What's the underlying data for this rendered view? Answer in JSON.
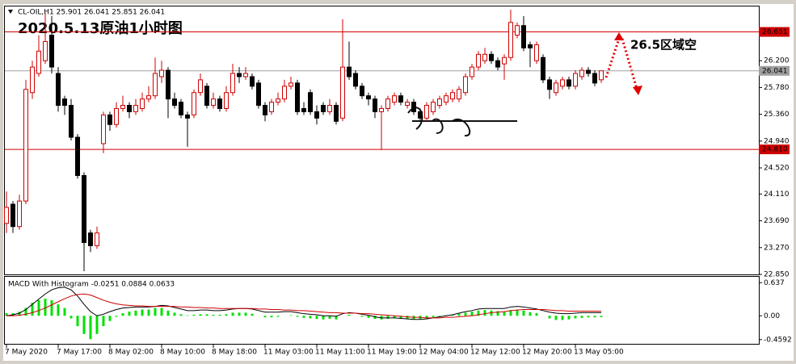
{
  "chart_data": [
    {
      "type": "candlestick",
      "header": "CL-OIL,H1  25.901 26.041 25.851 26.041",
      "title": "2020.5.13原油1小时图",
      "annotation": "26.5区域空",
      "ylim": [
        22.85,
        27.05
      ],
      "yticks": [
        {
          "value": 26.2,
          "label": "26.200"
        },
        {
          "value": 25.78,
          "label": "25.780"
        },
        {
          "value": 25.36,
          "label": "25.360"
        },
        {
          "value": 24.94,
          "label": "24.940"
        },
        {
          "value": 24.52,
          "label": "24.520"
        },
        {
          "value": 24.11,
          "label": "24.110"
        },
        {
          "value": 23.69,
          "label": "23.690"
        },
        {
          "value": 23.27,
          "label": "23.270"
        },
        {
          "value": 22.85,
          "label": "22.850"
        }
      ],
      "levels": [
        {
          "value": 26.651,
          "label": "26.651",
          "color": "#d00000"
        },
        {
          "value": 24.81,
          "label": "24.810",
          "color": "#d00000"
        },
        {
          "value": 26.041,
          "label": "26.041",
          "color": "#a0a0a0"
        }
      ],
      "x_labels": [
        "7 May 2020",
        "7 May 17:00",
        "8 May 02:00",
        "8 May 10:00",
        "8 May 18:00",
        "11 May 03:00",
        "11 May 11:00",
        "11 May 19:00",
        "12 May 04:00",
        "12 May 12:00",
        "12 May 20:00",
        "13 May 05:00"
      ],
      "up_color": "#d00000",
      "down_color": "#000000",
      "open": [
        23.65,
        23.95,
        23.6,
        24.0,
        25.7,
        26.0,
        26.2,
        26.6,
        26.0,
        25.6,
        25.5,
        25.0,
        24.4,
        23.5,
        23.3,
        24.9,
        25.35,
        25.2,
        25.45,
        25.5,
        25.4,
        25.45,
        25.6,
        25.65,
        25.95,
        26.05,
        25.6,
        25.55,
        25.35,
        25.35,
        25.7,
        25.8,
        25.5,
        25.6,
        25.45,
        25.7,
        26.0,
        25.95,
        25.95,
        25.85,
        25.5,
        25.4,
        25.55,
        25.6,
        25.8,
        25.85,
        25.45,
        25.7,
        25.4,
        25.5,
        25.4,
        25.5,
        25.3,
        26.1,
        26.0,
        25.8,
        25.65,
        25.6,
        25.4,
        25.45,
        25.55,
        25.65,
        25.5,
        25.55,
        25.4,
        25.3,
        25.4,
        25.5,
        25.55,
        25.6,
        25.6,
        25.7,
        25.95,
        26.1,
        26.2,
        26.3,
        26.2,
        26.15,
        26.25,
        26.6,
        26.75,
        26.45,
        26.2,
        26.25,
        25.9,
        25.7,
        25.8,
        25.9,
        25.8,
        25.95,
        26.05,
        26.0,
        25.901
      ],
      "high": [
        24.15,
        24.0,
        24.1,
        25.9,
        26.2,
        26.6,
        26.95,
        26.9,
        26.1,
        25.65,
        25.6,
        25.05,
        24.45,
        23.55,
        23.6,
        25.4,
        25.4,
        25.55,
        25.65,
        25.55,
        25.6,
        25.7,
        25.8,
        26.25,
        26.2,
        26.1,
        25.7,
        25.6,
        25.4,
        25.75,
        26.0,
        25.85,
        25.7,
        25.65,
        25.8,
        26.15,
        26.1,
        26.1,
        26.0,
        25.9,
        25.55,
        25.6,
        25.7,
        25.9,
        25.95,
        25.9,
        25.55,
        25.75,
        25.5,
        25.55,
        25.6,
        25.55,
        26.85,
        26.5,
        26.05,
        25.85,
        25.7,
        25.65,
        25.5,
        25.65,
        25.7,
        25.7,
        25.6,
        25.6,
        25.45,
        25.55,
        25.6,
        25.65,
        25.7,
        25.75,
        25.8,
        26.0,
        26.15,
        26.35,
        26.4,
        26.35,
        26.25,
        26.3,
        27.0,
        26.8,
        26.9,
        26.5,
        26.5,
        26.3,
        25.95,
        25.9,
        25.95,
        25.95,
        26.05,
        26.1,
        26.1,
        26.05,
        26.041
      ],
      "low": [
        23.5,
        23.5,
        23.55,
        23.95,
        25.6,
        25.95,
        26.15,
        26.0,
        25.4,
        25.35,
        24.95,
        24.35,
        22.9,
        23.2,
        23.25,
        24.75,
        25.1,
        25.15,
        25.4,
        25.3,
        25.35,
        25.4,
        25.55,
        25.6,
        25.85,
        25.3,
        25.45,
        25.3,
        24.85,
        25.3,
        25.65,
        25.45,
        25.45,
        25.4,
        25.4,
        25.65,
        25.85,
        25.9,
        25.75,
        25.45,
        25.25,
        25.35,
        25.5,
        25.55,
        25.75,
        25.35,
        25.35,
        25.35,
        25.2,
        25.35,
        25.35,
        25.2,
        25.25,
        25.9,
        25.75,
        25.6,
        25.5,
        25.3,
        24.8,
        25.4,
        25.5,
        25.5,
        25.45,
        25.35,
        25.25,
        25.25,
        25.35,
        25.45,
        25.5,
        25.55,
        25.55,
        25.65,
        25.9,
        26.05,
        26.15,
        26.15,
        26.05,
        25.9,
        26.2,
        26.55,
        26.35,
        26.1,
        26.15,
        25.85,
        25.6,
        25.65,
        25.75,
        25.75,
        25.75,
        25.9,
        25.95,
        25.8,
        25.851
      ],
      "close": [
        23.9,
        23.6,
        24.0,
        25.75,
        26.1,
        26.35,
        26.5,
        26.1,
        25.5,
        25.5,
        25.0,
        24.4,
        23.35,
        23.3,
        23.5,
        25.35,
        25.2,
        25.45,
        25.5,
        25.4,
        25.5,
        25.6,
        25.65,
        26.0,
        26.05,
        25.6,
        25.5,
        25.35,
        25.3,
        25.7,
        25.9,
        25.5,
        25.6,
        25.45,
        25.7,
        26.0,
        25.95,
        26.0,
        25.8,
        25.5,
        25.35,
        25.55,
        25.6,
        25.8,
        25.85,
        25.4,
        25.4,
        25.4,
        25.3,
        25.4,
        25.5,
        25.25,
        26.1,
        25.95,
        25.8,
        25.65,
        25.6,
        25.4,
        25.45,
        25.6,
        25.65,
        25.55,
        25.55,
        25.4,
        25.3,
        25.5,
        25.55,
        25.6,
        25.65,
        25.7,
        25.75,
        25.95,
        26.1,
        26.3,
        26.3,
        26.2,
        26.1,
        26.25,
        26.8,
        26.75,
        26.4,
        26.4,
        26.45,
        25.9,
        25.75,
        25.85,
        25.9,
        25.8,
        26.0,
        26.05,
        26.0,
        25.85,
        26.041
      ]
    },
    {
      "type": "macd",
      "title": "MACD With Histogram -0.0251 0.0884 0.0633",
      "ylim": [
        -0.54,
        0.75
      ],
      "yticks": [
        0.637,
        {
          "value": 0,
          "label": "0.00"
        },
        -0.4592
      ],
      "series": [
        {
          "name": "Histogram",
          "color": "#00e000",
          "values": [
            0.05,
            0.05,
            0.08,
            0.15,
            0.25,
            0.3,
            0.33,
            0.3,
            0.22,
            0.15,
            -0.05,
            -0.2,
            -0.35,
            -0.45,
            -0.35,
            -0.2,
            -0.1,
            -0.02,
            0.05,
            0.08,
            0.1,
            0.12,
            0.12,
            0.15,
            0.15,
            0.1,
            0.06,
            0.03,
            0.01,
            0.02,
            0.03,
            0.03,
            0.02,
            0.02,
            0.03,
            0.06,
            0.06,
            0.06,
            0.04,
            0.0,
            -0.03,
            -0.03,
            -0.02,
            0.0,
            0.01,
            -0.02,
            -0.04,
            -0.05,
            -0.06,
            -0.07,
            -0.06,
            -0.07,
            0.0,
            0.02,
            0.0,
            -0.02,
            -0.04,
            -0.06,
            -0.07,
            -0.06,
            -0.05,
            -0.05,
            -0.06,
            -0.07,
            -0.07,
            -0.05,
            -0.03,
            -0.01,
            0.01,
            0.02,
            0.04,
            0.06,
            0.08,
            0.1,
            0.11,
            0.1,
            0.09,
            0.08,
            0.11,
            0.12,
            0.1,
            0.07,
            0.05,
            0.0,
            -0.05,
            -0.08,
            -0.08,
            -0.07,
            -0.05,
            -0.04,
            -0.03,
            -0.03,
            -0.025
          ]
        },
        {
          "name": "MACD",
          "color": "#000000",
          "values": [
            0.0,
            0.02,
            0.05,
            0.12,
            0.22,
            0.32,
            0.42,
            0.5,
            0.54,
            0.55,
            0.5,
            0.38,
            0.22,
            0.08,
            0.0,
            0.03,
            0.08,
            0.12,
            0.15,
            0.16,
            0.17,
            0.17,
            0.17,
            0.18,
            0.2,
            0.19,
            0.16,
            0.13,
            0.1,
            0.1,
            0.11,
            0.11,
            0.1,
            0.1,
            0.11,
            0.13,
            0.14,
            0.14,
            0.13,
            0.1,
            0.07,
            0.07,
            0.07,
            0.08,
            0.08,
            0.06,
            0.04,
            0.03,
            0.02,
            0.0,
            0.0,
            -0.01,
            0.04,
            0.06,
            0.05,
            0.03,
            0.01,
            -0.02,
            -0.04,
            -0.04,
            -0.04,
            -0.05,
            -0.06,
            -0.07,
            -0.07,
            -0.06,
            -0.04,
            -0.02,
            0.0,
            0.02,
            0.05,
            0.08,
            0.1,
            0.13,
            0.14,
            0.14,
            0.14,
            0.14,
            0.17,
            0.18,
            0.17,
            0.15,
            0.13,
            0.1,
            0.07,
            0.05,
            0.04,
            0.04,
            0.05,
            0.06,
            0.06,
            0.06,
            0.06
          ]
        },
        {
          "name": "Signal",
          "color": "#d00000",
          "values": [
            0.0,
            0.0,
            0.01,
            0.03,
            0.06,
            0.1,
            0.15,
            0.21,
            0.27,
            0.33,
            0.38,
            0.41,
            0.42,
            0.4,
            0.35,
            0.3,
            0.26,
            0.23,
            0.21,
            0.2,
            0.19,
            0.19,
            0.18,
            0.18,
            0.18,
            0.18,
            0.18,
            0.17,
            0.17,
            0.16,
            0.16,
            0.15,
            0.15,
            0.14,
            0.14,
            0.14,
            0.14,
            0.14,
            0.14,
            0.13,
            0.13,
            0.12,
            0.12,
            0.11,
            0.11,
            0.1,
            0.1,
            0.09,
            0.08,
            0.07,
            0.06,
            0.06,
            0.05,
            0.05,
            0.05,
            0.04,
            0.04,
            0.03,
            0.02,
            0.01,
            0.0,
            -0.01,
            -0.02,
            -0.03,
            -0.03,
            -0.04,
            -0.04,
            -0.04,
            -0.03,
            -0.03,
            -0.02,
            -0.01,
            0.0,
            0.02,
            0.04,
            0.06,
            0.07,
            0.08,
            0.1,
            0.11,
            0.12,
            0.12,
            0.12,
            0.12,
            0.11,
            0.1,
            0.1,
            0.09,
            0.09,
            0.09,
            0.09,
            0.09,
            0.088
          ]
        }
      ]
    }
  ]
}
